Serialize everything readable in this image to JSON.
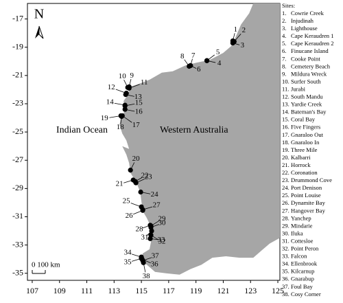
{
  "map": {
    "xlim": [
      106.65,
      125.15
    ],
    "ylim": [
      -35.5,
      -15.9
    ],
    "xticks": [
      107,
      109,
      111,
      113,
      115,
      117,
      119,
      121,
      123,
      125
    ],
    "yticks": [
      -17,
      -19,
      -21,
      -23,
      -25,
      -27,
      -29,
      -31,
      -33,
      -35
    ],
    "north": "N",
    "ocean": "Indian Ocean",
    "region": "Western Australia",
    "scale": "0 100 km",
    "sites_title": "Sites:",
    "sites": [
      {
        "key": "1.",
        "label": "1",
        "name": "Cowrie Creek",
        "lon": 121.7,
        "lat": -18.55
      },
      {
        "key": "2.",
        "label": "2",
        "name": "Injudinah",
        "lon": 121.8,
        "lat": -18.6
      },
      {
        "key": "3.",
        "label": "3",
        "name": "Lighthouse",
        "lon": 121.7,
        "lat": -18.7
      },
      {
        "key": "4.",
        "label": "4",
        "name": "Cape Keraudren 1",
        "lon": 119.8,
        "lat": -19.95
      },
      {
        "key": "5.",
        "label": "5",
        "name": "Cape Keraudren 2",
        "lon": 119.8,
        "lat": -19.95
      },
      {
        "key": "6.",
        "label": "6",
        "name": "Finucane Island",
        "lon": 118.6,
        "lat": -20.3
      },
      {
        "key": "7.",
        "label": "7",
        "name": "Cooke Point",
        "lon": 118.6,
        "lat": -20.3
      },
      {
        "key": "8.",
        "label": "8",
        "name": "Cemetery Beach",
        "lon": 118.5,
        "lat": -20.35
      },
      {
        "key": "9.",
        "label": "9",
        "name": "Mildura Wreck",
        "lon": 114.1,
        "lat": -21.8
      },
      {
        "key": "10.",
        "label": "10",
        "name": "Surfer South",
        "lon": 114.0,
        "lat": -21.85
      },
      {
        "key": "11.",
        "label": "11",
        "name": "Jurabi",
        "lon": 114.1,
        "lat": -21.9
      },
      {
        "key": "12.",
        "label": "12",
        "name": "South Mandu",
        "lon": 113.9,
        "lat": -22.25
      },
      {
        "key": "13.",
        "label": "13",
        "name": "Yardie Creek",
        "lon": 113.85,
        "lat": -22.35
      },
      {
        "key": "14.",
        "label": "14",
        "name": "Bateman's Bay",
        "lon": 113.8,
        "lat": -23.1
      },
      {
        "key": "15.",
        "label": "15",
        "name": "Coral Bay",
        "lon": 113.8,
        "lat": -23.15
      },
      {
        "key": "16.",
        "label": "16",
        "name": "Five Fingers",
        "lon": 113.8,
        "lat": -23.4
      },
      {
        "key": "17.",
        "label": "17",
        "name": "Gnaraloo Out",
        "lon": 113.6,
        "lat": -23.85
      },
      {
        "key": "18.",
        "label": "18",
        "name": "Gnaraloo In",
        "lon": 113.55,
        "lat": -23.9
      },
      {
        "key": "19.",
        "label": "19",
        "name": "Three Mile",
        "lon": 113.5,
        "lat": -23.85
      },
      {
        "key": "20.",
        "label": "20",
        "name": "Kalbarri",
        "lon": 114.2,
        "lat": -27.7
      },
      {
        "key": "21.",
        "label": "21",
        "name": "Horrock",
        "lon": 114.4,
        "lat": -28.4
      },
      {
        "key": "22.",
        "label": "22",
        "name": "Coronation",
        "lon": 114.55,
        "lat": -28.5
      },
      {
        "key": "23.",
        "label": "23",
        "name": "Drummond Cove",
        "lon": 114.6,
        "lat": -28.6
      },
      {
        "key": "24.",
        "label": "24",
        "name": "Port Denison",
        "lon": 114.95,
        "lat": -29.25
      },
      {
        "key": "25.",
        "label": "25",
        "name": "Point Louise",
        "lon": 115.0,
        "lat": -30.3
      },
      {
        "key": "26.",
        "label": "26",
        "name": "Dynamite Bay",
        "lon": 115.1,
        "lat": -30.55
      },
      {
        "key": "27.",
        "label": "27",
        "name": "Hangover Bay",
        "lon": 115.1,
        "lat": -30.5
      },
      {
        "key": "28.",
        "label": "28",
        "name": "Yanchep",
        "lon": 115.65,
        "lat": -31.6
      },
      {
        "key": "29.",
        "label": "29",
        "name": "Mindarie",
        "lon": 115.7,
        "lat": -31.65
      },
      {
        "key": "30.",
        "label": "30",
        "name": "Iluka",
        "lon": 115.7,
        "lat": -31.75
      },
      {
        "key": "31.",
        "label": "31",
        "name": "Cottesloe",
        "lon": 115.75,
        "lat": -32.0
      },
      {
        "key": "32.",
        "label": "32",
        "name": "Point Peron",
        "lon": 115.7,
        "lat": -32.3
      },
      {
        "key": "33.",
        "label": "33",
        "name": "Falcon",
        "lon": 115.65,
        "lat": -32.55
      },
      {
        "key": "34.",
        "label": "34",
        "name": "Ellenbrook",
        "lon": 115.0,
        "lat": -33.85
      },
      {
        "key": "35.",
        "label": "35",
        "name": "Kilcarnup",
        "lon": 115.0,
        "lat": -33.95
      },
      {
        "key": "36.",
        "label": "36",
        "name": "Gnarabup",
        "lon": 115.05,
        "lat": -34.0
      },
      {
        "key": "37.",
        "label": "37",
        "name": "Foul Bay",
        "lon": 115.1,
        "lat": -34.1
      },
      {
        "key": "38.",
        "label": "38",
        "name": "Cosy Corner",
        "lon": 115.15,
        "lat": -34.25
      }
    ]
  }
}
